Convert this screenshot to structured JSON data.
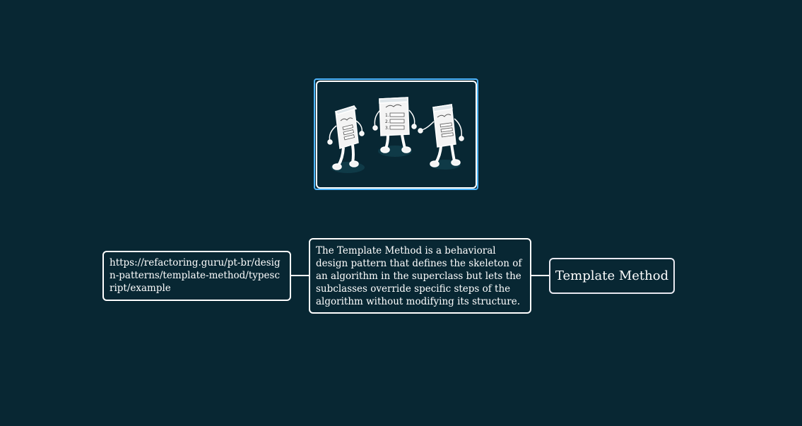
{
  "mindmap": {
    "root": {
      "label": "Template Method"
    },
    "description": {
      "text": "The Template Method is a behavioral design pattern that defines the skeleton of an algorithm in the superclass but lets the subclasses override specific steps of the algorithm without modifying its structure."
    },
    "link": {
      "text": "https://refactoring.guru/pt-br/design-patterns/template-method/typescript/example"
    },
    "image": {
      "alt": "illustration-three-document-characters"
    }
  },
  "colors": {
    "background": "#082733",
    "node_border": "#ffffff",
    "selected_border": "#4fb6ff",
    "text": "#ffffff"
  }
}
